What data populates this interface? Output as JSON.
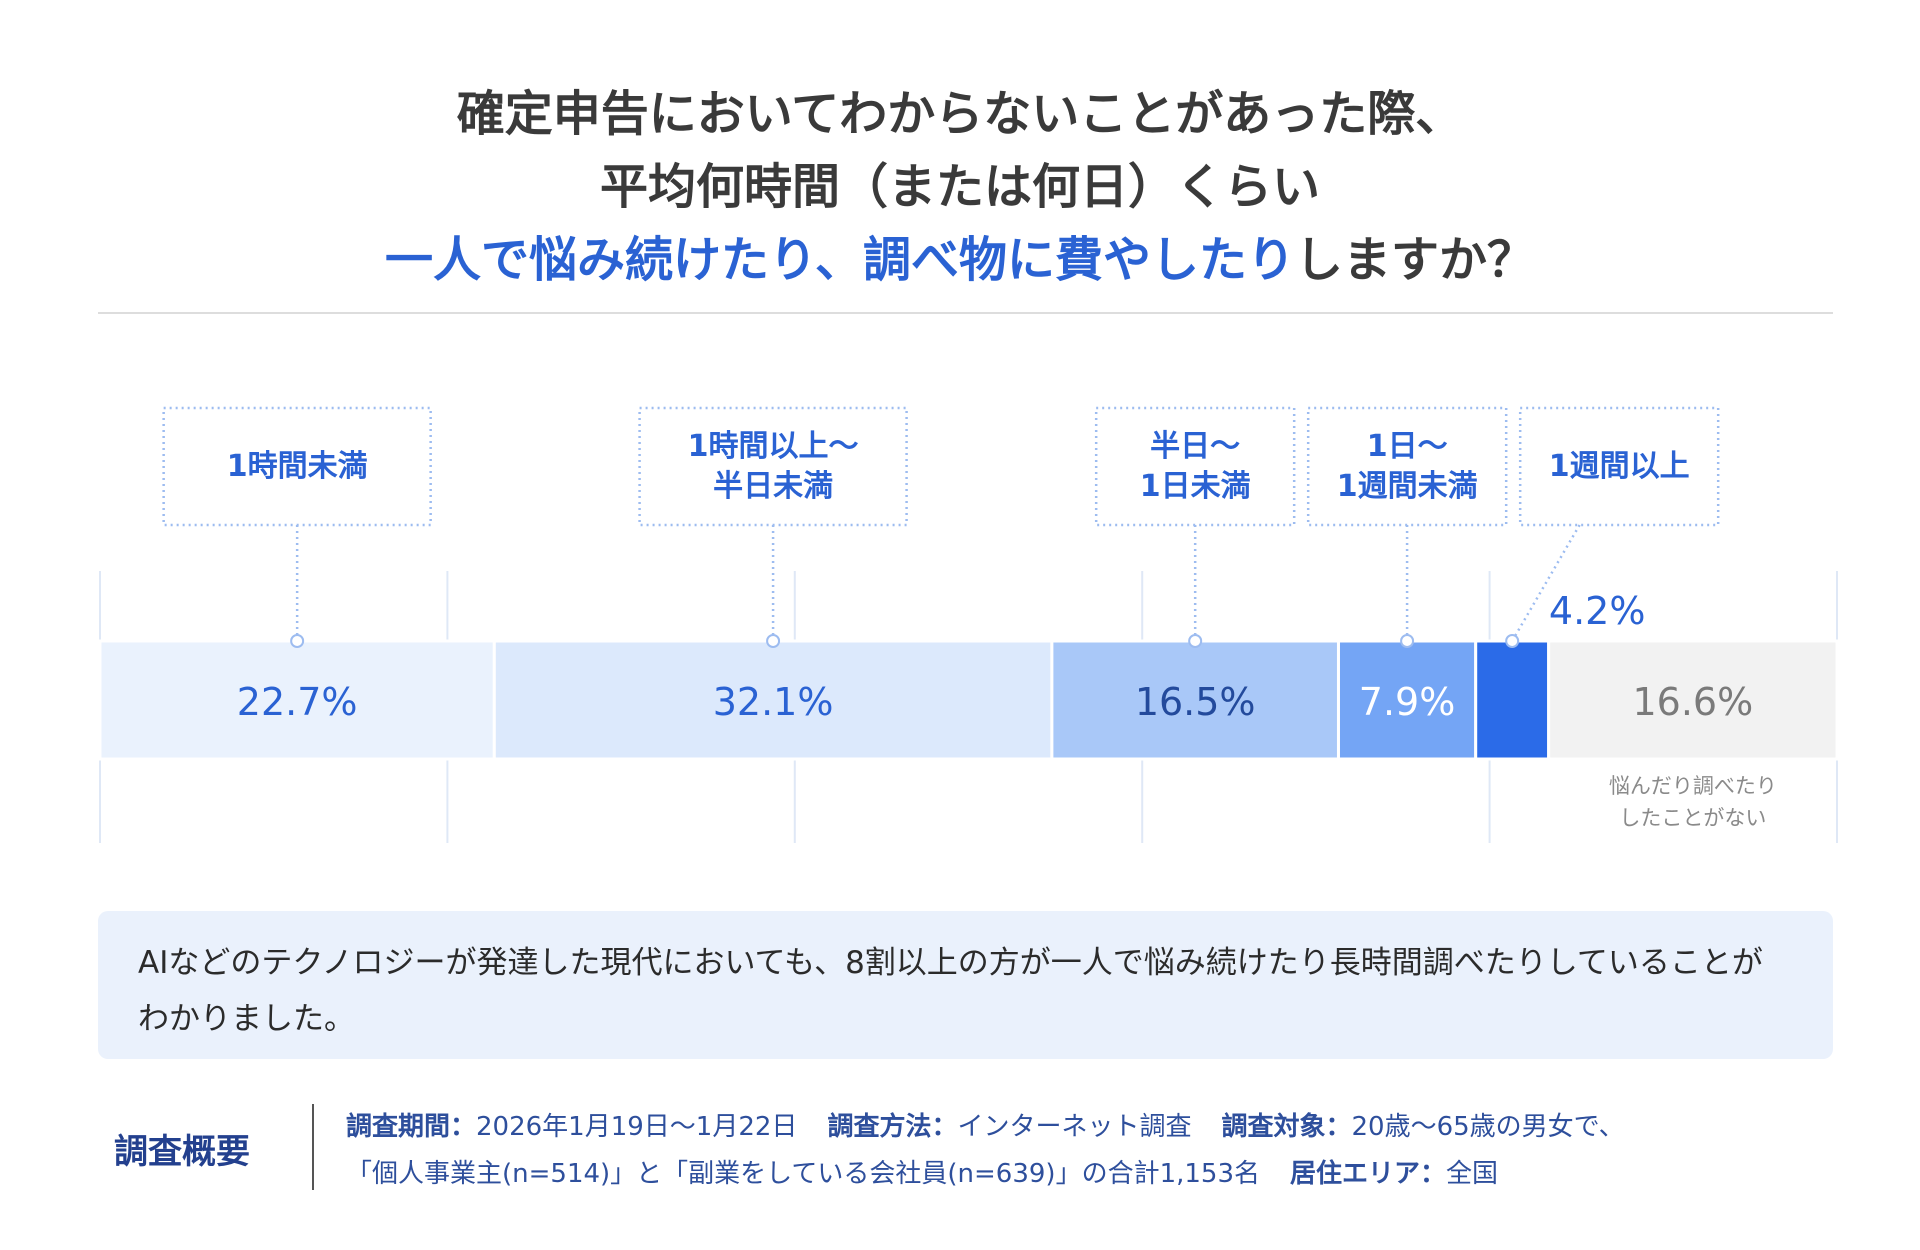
{
  "title_lines": [
    "確定申告においてわからないことがあった際、",
    "平均何時間（または何日）くらい"
  ],
  "title_highlight": "一人で悩み続けたり、調べ物に費やしたり",
  "title_tail": "しますか？",
  "chart_data": {
    "type": "stacked-bar",
    "categories": [
      "1時間未満",
      "1時間以上〜\n半日未満",
      "半日〜\n1日未満",
      "1日〜\n1週間未満",
      "1週間以上",
      "悩んだり調べたり\nしたことがない"
    ],
    "values": [
      22.7,
      32.1,
      16.5,
      7.9,
      4.2,
      16.6
    ],
    "value_labels": [
      "22.7%",
      "32.1%",
      "16.5%",
      "7.9%",
      "4.2%",
      "16.6%"
    ],
    "colors": [
      "#eaf2fd",
      "#dce9fc",
      "#a9c8f8",
      "#74a5f5",
      "#2b6be8",
      "#f2f2f2"
    ],
    "value_label_colors": [
      "#2a62d3",
      "#2a62d3",
      "#234a9c",
      "#ffffff",
      "#2a62d3",
      "#7a7a7a"
    ],
    "label_style": [
      "box",
      "box",
      "box",
      "box",
      "box",
      "below"
    ],
    "xlim": [
      0,
      100
    ],
    "xticks": [
      0,
      20,
      40,
      60,
      80,
      100
    ],
    "grid": true
  },
  "note": "AIなどのテクノロジーが発達した現代においても、8割以上の方が一人で悩み続けたり長時間調べたりしていることがわかりました。",
  "survey": {
    "heading": "調査概要",
    "items": [
      {
        "label": "調査期間：",
        "text": "2026年1月19日〜1月22日"
      },
      {
        "label": "調査方法：",
        "text": "インターネット調査"
      },
      {
        "label": "調査対象：",
        "text": "20歳〜65歳の男女で、\n「個人事業主(n=514)」と「副業をしている会社員(n=639)」の合計1,153名"
      },
      {
        "label": "居住エリア：",
        "text": "全国"
      }
    ]
  }
}
